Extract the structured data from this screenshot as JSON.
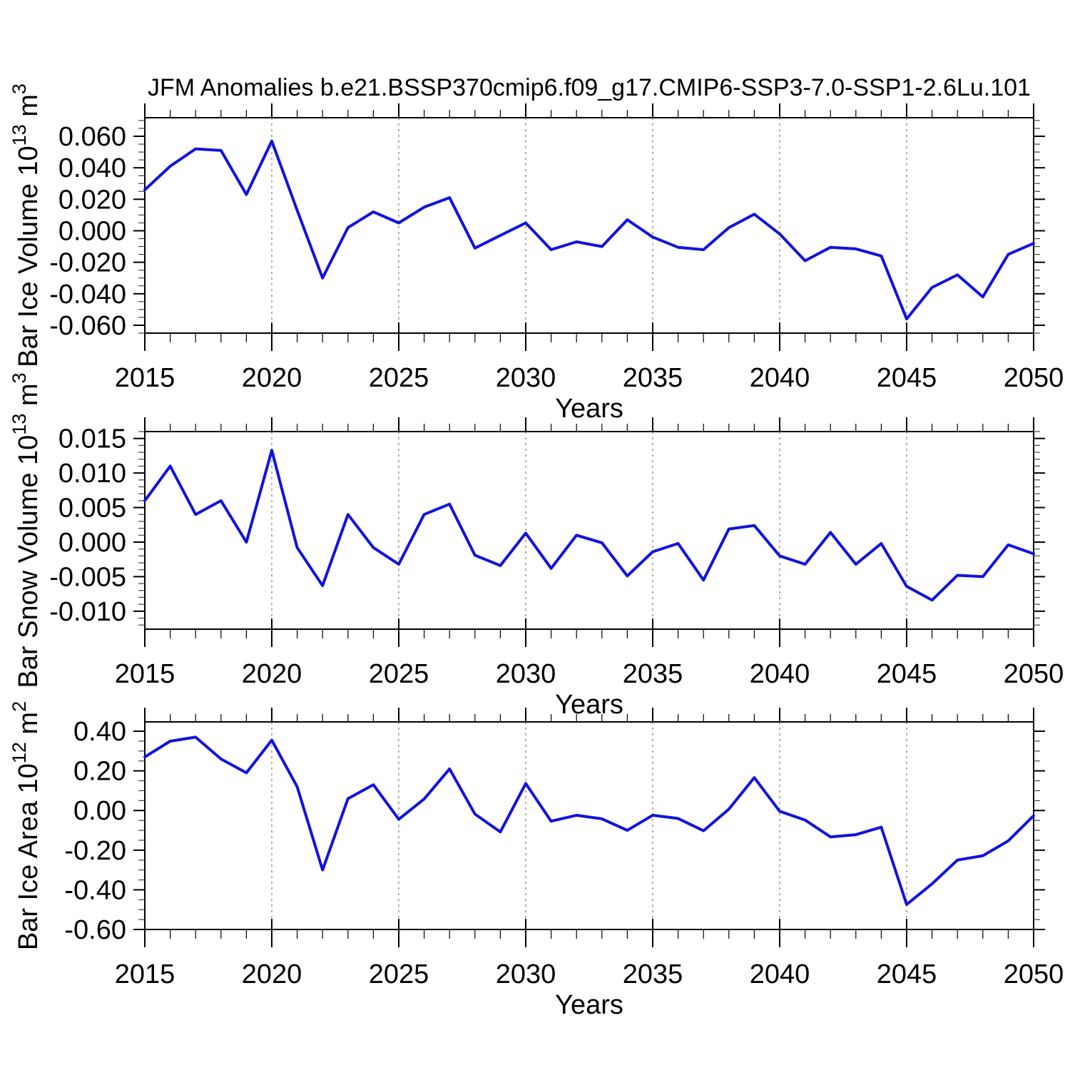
{
  "title": "JFM Anomalies b.e21.BSSP370cmip6.f09_g17.CMIP6-SSP3-7.0-SSP1-2.6Lu.101",
  "styles": {
    "line_color": "#1212e0",
    "grid_color": "#7a7a7a",
    "frame_color": "#000000",
    "text_color": "#000000"
  },
  "chart_data": {
    "type": "line",
    "title": "JFM Anomalies b.e21.BSSP370cmip6.f09_g17.CMIP6-SSP3-7.0-SSP1-2.6Lu.101",
    "xlabel": "Years",
    "x": [
      2015,
      2016,
      2017,
      2018,
      2019,
      2020,
      2021,
      2022,
      2023,
      2024,
      2025,
      2026,
      2027,
      2028,
      2029,
      2030,
      2031,
      2032,
      2033,
      2034,
      2035,
      2036,
      2037,
      2038,
      2039,
      2040,
      2041,
      2042,
      2043,
      2044,
      2045,
      2046,
      2047,
      2048,
      2049,
      2050
    ],
    "x_range": [
      2015,
      2050
    ],
    "x_major_ticks": [
      2015,
      2020,
      2025,
      2030,
      2035,
      2040,
      2045,
      2050
    ],
    "grid_years": [
      2020,
      2025,
      2030,
      2035,
      2040,
      2045
    ],
    "legend": "none",
    "grid": "vertical-dashed",
    "panels": [
      {
        "id": "bar-ice-volume",
        "ylabel_text": "Bar Ice Volume 10^13 m^3",
        "ylabel_parts": [
          {
            "t": "Bar Ice Volume 10"
          },
          {
            "t": "13",
            "sup": true
          },
          {
            "t": " m"
          },
          {
            "t": "3",
            "sup": true
          }
        ],
        "ylim": [
          -0.065,
          0.0718
        ],
        "ytick_values": [
          0.06,
          0.04,
          0.02,
          0.0,
          -0.02,
          -0.04,
          -0.06
        ],
        "ytick_labels": [
          "0.060",
          "0.040",
          "0.020",
          "0.000",
          "-0.020",
          "-0.040",
          "-0.060"
        ],
        "y_minor_step": 0.005,
        "values": [
          0.026,
          0.041,
          0.052,
          0.051,
          0.023,
          0.057,
          0.013,
          -0.03,
          0.002,
          0.012,
          0.005,
          0.015,
          0.021,
          -0.011,
          -0.003,
          0.005,
          -0.012,
          -0.007,
          -0.01,
          0.007,
          -0.004,
          -0.0105,
          -0.012,
          0.002,
          0.0105,
          -0.002,
          -0.019,
          -0.0105,
          -0.0115,
          -0.016,
          -0.056,
          -0.036,
          -0.028,
          -0.042,
          -0.015,
          -0.008
        ]
      },
      {
        "id": "bar-snow-volume",
        "ylabel_text": "Bar Snow Volume 10^13 m^3",
        "ylabel_parts": [
          {
            "t": "Bar Snow Volume 10"
          },
          {
            "t": "13",
            "sup": true
          },
          {
            "t": " m"
          },
          {
            "t": "3",
            "sup": true
          }
        ],
        "ylim": [
          -0.0126,
          0.016
        ],
        "ytick_values": [
          0.015,
          0.01,
          0.005,
          0.0,
          -0.005,
          -0.01
        ],
        "ytick_labels": [
          "0.015",
          "0.010",
          "0.005",
          "0.000",
          "-0.005",
          "-0.010"
        ],
        "y_minor_step": 0.001,
        "values": [
          0.006,
          0.011,
          0.004,
          0.006,
          0.0,
          0.0133,
          -0.0008,
          -0.0063,
          0.004,
          -0.0008,
          -0.0032,
          0.004,
          0.0055,
          -0.0019,
          -0.0034,
          0.0013,
          -0.0038,
          0.001,
          -0.0001,
          -0.0049,
          -0.0014,
          -0.0002,
          -0.0055,
          0.0019,
          0.0024,
          -0.002,
          -0.0032,
          0.0014,
          -0.0032,
          -0.0002,
          -0.0064,
          -0.0084,
          -0.0048,
          -0.005,
          -0.0004,
          -0.0017
        ]
      },
      {
        "id": "bar-ice-area",
        "ylabel_text": "Bar Ice Area 10^12 m^2",
        "ylabel_parts": [
          {
            "t": "Bar Ice Area 10"
          },
          {
            "t": "12",
            "sup": true
          },
          {
            "t": " m"
          },
          {
            "t": "2",
            "sup": true
          }
        ],
        "ylim": [
          -0.6,
          0.447
        ],
        "ytick_values": [
          0.4,
          0.2,
          0.0,
          -0.2,
          -0.4,
          -0.6
        ],
        "ytick_labels": [
          "0.40",
          "0.20",
          "0.00",
          "-0.20",
          "-0.40",
          "-0.60"
        ],
        "y_minor_step": 0.05,
        "values": [
          0.27,
          0.35,
          0.37,
          0.26,
          0.19,
          0.355,
          0.12,
          -0.3,
          0.06,
          0.13,
          -0.044,
          0.058,
          0.21,
          -0.018,
          -0.108,
          0.136,
          -0.054,
          -0.024,
          -0.042,
          -0.1,
          -0.024,
          -0.04,
          -0.102,
          0.007,
          0.166,
          -0.004,
          -0.048,
          -0.133,
          -0.122,
          -0.084,
          -0.474,
          -0.37,
          -0.25,
          -0.228,
          -0.153,
          -0.026
        ]
      }
    ]
  }
}
